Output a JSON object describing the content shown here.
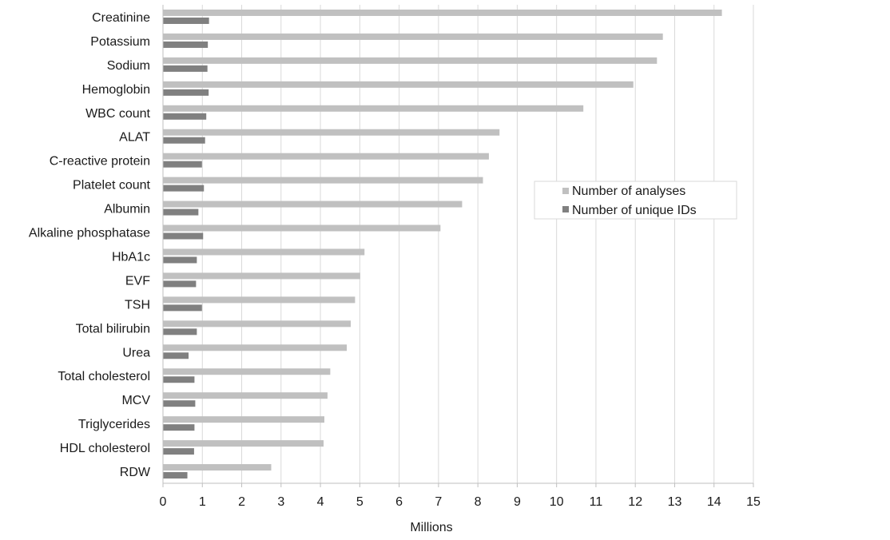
{
  "chart_data": {
    "type": "bar",
    "orientation": "horizontal",
    "categories": [
      "Creatinine",
      "Potassium",
      "Sodium",
      "Hemoglobin",
      "WBC count",
      "ALAT",
      "C-reactive protein",
      "Platelet count",
      "Albumin",
      "Alkaline phosphatase",
      "HbA1c",
      "EVF",
      "TSH",
      "Total bilirubin",
      "Urea",
      "Total cholesterol",
      "MCV",
      "Triglycerides",
      "HDL cholesterol",
      "RDW"
    ],
    "series": [
      {
        "name": "Number of analyses",
        "color": "#c0c0c0",
        "values": [
          14.2,
          12.7,
          12.55,
          11.95,
          10.68,
          8.55,
          8.28,
          8.13,
          7.6,
          7.05,
          5.12,
          5.01,
          4.88,
          4.77,
          4.67,
          4.25,
          4.18,
          4.1,
          4.08,
          2.75
        ]
      },
      {
        "name": "Number of unique IDs",
        "color": "#808080",
        "values": [
          1.17,
          1.14,
          1.13,
          1.16,
          1.1,
          1.07,
          0.99,
          1.04,
          0.9,
          1.02,
          0.86,
          0.84,
          0.99,
          0.86,
          0.65,
          0.8,
          0.82,
          0.8,
          0.79,
          0.62
        ]
      }
    ],
    "x_ticks": [
      0,
      1,
      2,
      3,
      4,
      5,
      6,
      7,
      8,
      9,
      10,
      11,
      12,
      13,
      14,
      15
    ],
    "xlim": [
      0,
      15
    ],
    "xlabel": "Millions",
    "ylabel": "",
    "title": "",
    "grid": "vertical",
    "legend_position": "right"
  }
}
